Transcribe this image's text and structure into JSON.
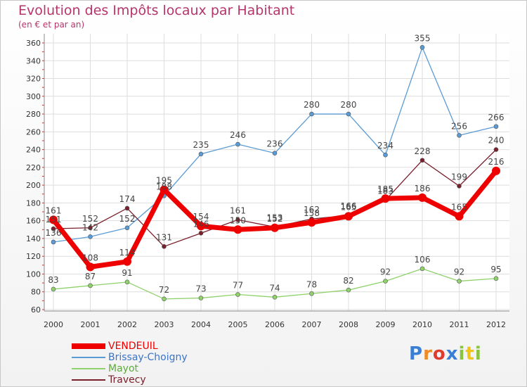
{
  "header": {
    "title": "Evolution des Impôts locaux par Habitant",
    "subtitle": "(en € et par an)"
  },
  "logo": {
    "text": "Proxiti",
    "colors": [
      "#3a7fd5",
      "#f08a24",
      "#e03b2f",
      "#3a7fd5",
      "#8ac43f",
      "#f0c419",
      "#8ac43f"
    ]
  },
  "chart_data": {
    "type": "line",
    "title": "Evolution des Impôts locaux par Habitant",
    "subtitle": "(en € et par an)",
    "x": [
      "2000",
      "2001",
      "2002",
      "2003",
      "2004",
      "2005",
      "2006",
      "2007",
      "2008",
      "2009",
      "2010",
      "2011",
      "2012"
    ],
    "ylim": [
      60,
      360
    ],
    "yticks": [
      60,
      80,
      100,
      120,
      140,
      160,
      180,
      200,
      220,
      240,
      260,
      280,
      300,
      320,
      340,
      360
    ],
    "grid": true,
    "legend_position": "bottom-left",
    "series": [
      {
        "name": "VENDEUIL",
        "color": "#ee0000",
        "values": [
          161,
          108,
          114,
          195,
          154,
          150,
          152,
          158,
          165,
          185,
          186,
          165,
          216
        ]
      },
      {
        "name": "Brissay-Choigny",
        "color": "#5a9bd5",
        "values": [
          136,
          142,
          152,
          188,
          235,
          246,
          236,
          280,
          280,
          234,
          355,
          256,
          266
        ]
      },
      {
        "name": "Mayot",
        "color": "#8fd16a",
        "values": [
          83,
          87,
          91,
          72,
          73,
          77,
          74,
          78,
          82,
          92,
          106,
          92,
          95
        ]
      },
      {
        "name": "Travecy",
        "color": "#7a1f2b",
        "values": [
          151,
          152,
          174,
          131,
          146,
          161,
          153,
          162,
          166,
          183,
          228,
          199,
          240
        ]
      }
    ]
  }
}
